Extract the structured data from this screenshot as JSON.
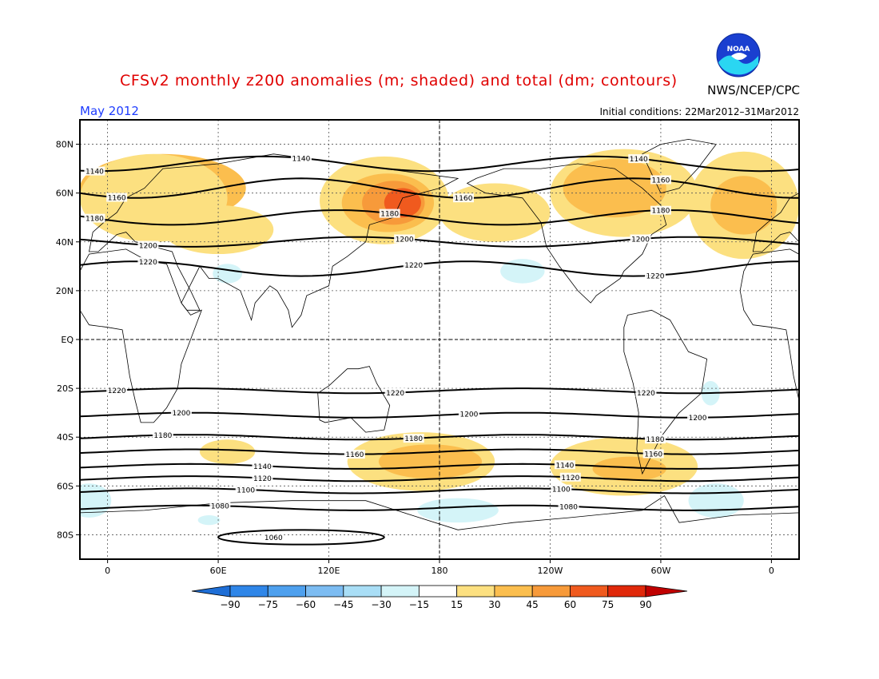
{
  "header": {
    "title": "CFSv2 monthly z200 anomalies (m; shaded) and total (dm; contours)",
    "month": "May 2012",
    "initial_conditions": "Initial conditions: 22Mar2012–31Mar2012",
    "agency": "NWS/NCEP/CPC",
    "logo_text": "NOAA"
  },
  "map": {
    "lat_labels": [
      "80N",
      "60N",
      "40N",
      "20N",
      "EQ",
      "20S",
      "40S",
      "60S",
      "80S"
    ],
    "lat_values": [
      80,
      60,
      40,
      20,
      0,
      -20,
      -40,
      -60,
      -80
    ],
    "lon_labels": [
      "0",
      "60E",
      "120E",
      "180",
      "120W",
      "60W",
      "0"
    ],
    "lon_values": [
      0,
      60,
      120,
      180,
      240,
      300,
      360
    ],
    "lon_range": [
      -15,
      375
    ],
    "lat_range": [
      -90,
      90
    ],
    "contours": [
      {
        "label": "1140",
        "lat": 72,
        "amp": 3,
        "phase": 40,
        "labels_at": [
          -7,
          105,
          288
        ]
      },
      {
        "label": "1160",
        "lat": 62,
        "amp": 4,
        "phase": 60,
        "labels_at": [
          5,
          193,
          300
        ]
      },
      {
        "label": "1180",
        "lat": 50,
        "amp": 3,
        "phase": 80,
        "labels_at": [
          -7,
          153,
          300
        ]
      },
      {
        "label": "1200",
        "lat": 40,
        "amp": 2,
        "phase": 90,
        "labels_at": [
          22,
          161,
          289
        ]
      },
      {
        "label": "1220",
        "lat": 29,
        "amp": 3,
        "phase": 150,
        "labels_at": [
          22,
          166,
          297
        ]
      },
      {
        "label": "1220",
        "lat": -21,
        "amp": 1,
        "phase": 0,
        "labels_at": [
          5,
          156,
          292
        ]
      },
      {
        "label": "1200",
        "lat": -31,
        "amp": 1,
        "phase": 0,
        "labels_at": [
          40,
          196,
          320
        ]
      },
      {
        "label": "1180",
        "lat": -40,
        "amp": 1,
        "phase": 0,
        "labels_at": [
          30,
          166,
          297
        ]
      },
      {
        "label": "1160",
        "lat": -46,
        "amp": 1,
        "phase": 0,
        "labels_at": [
          134,
          296
        ]
      },
      {
        "label": "1140",
        "lat": -52,
        "amp": 1,
        "phase": 0,
        "labels_at": [
          84,
          248
        ]
      },
      {
        "label": "1120",
        "lat": -57,
        "amp": 1,
        "phase": 0,
        "labels_at": [
          84,
          251
        ]
      },
      {
        "label": "1100",
        "lat": -62,
        "amp": 1,
        "phase": 0,
        "labels_at": [
          75,
          246
        ]
      },
      {
        "label": "1080",
        "lat": -69,
        "amp": 1,
        "phase": 0,
        "labels_at": [
          61,
          250
        ]
      },
      {
        "label": "1060",
        "lat": -81,
        "amp": 0,
        "phase": 0,
        "labels_at": [
          90
        ]
      }
    ],
    "anomalies": [
      {
        "lon": 30,
        "lat": 62,
        "rx": 45,
        "ry": 14,
        "value": 30
      },
      {
        "lon": 25,
        "lat": 58,
        "rx": 40,
        "ry": 18,
        "value": 15
      },
      {
        "lon": 60,
        "lat": 45,
        "rx": 30,
        "ry": 10,
        "value": 15
      },
      {
        "lon": 150,
        "lat": 57,
        "rx": 35,
        "ry": 18,
        "value": 15
      },
      {
        "lon": 152,
        "lat": 56,
        "rx": 25,
        "ry": 12,
        "value": 30
      },
      {
        "lon": 155,
        "lat": 56,
        "rx": 17,
        "ry": 9,
        "value": 45
      },
      {
        "lon": 160,
        "lat": 56,
        "rx": 10,
        "ry": 6,
        "value": 60
      },
      {
        "lon": 210,
        "lat": 52,
        "rx": 30,
        "ry": 12,
        "value": 15
      },
      {
        "lon": 280,
        "lat": 60,
        "rx": 40,
        "ry": 18,
        "value": 15
      },
      {
        "lon": 275,
        "lat": 62,
        "rx": 28,
        "ry": 12,
        "value": 30
      },
      {
        "lon": 345,
        "lat": 55,
        "rx": 30,
        "ry": 22,
        "value": 15
      },
      {
        "lon": 345,
        "lat": 55,
        "rx": 18,
        "ry": 12,
        "value": 30
      },
      {
        "lon": 225,
        "lat": 28,
        "rx": 12,
        "ry": 5,
        "value": -15
      },
      {
        "lon": 65,
        "lat": 27,
        "rx": 8,
        "ry": 4,
        "value": -15
      },
      {
        "lon": 327,
        "lat": -22,
        "rx": 5,
        "ry": 5,
        "value": -15
      },
      {
        "lon": 170,
        "lat": -50,
        "rx": 40,
        "ry": 12,
        "value": 15
      },
      {
        "lon": 175,
        "lat": -50,
        "rx": 28,
        "ry": 7,
        "value": 30
      },
      {
        "lon": 280,
        "lat": -52,
        "rx": 40,
        "ry": 12,
        "value": 15
      },
      {
        "lon": 283,
        "lat": -53,
        "rx": 20,
        "ry": 5,
        "value": 30
      },
      {
        "lon": 65,
        "lat": -46,
        "rx": 15,
        "ry": 5,
        "value": 15
      },
      {
        "lon": -10,
        "lat": -66,
        "rx": 12,
        "ry": 7,
        "value": -15
      },
      {
        "lon": 190,
        "lat": -70,
        "rx": 22,
        "ry": 5,
        "value": -15
      },
      {
        "lon": 330,
        "lat": -66,
        "rx": 15,
        "ry": 7,
        "value": -15
      },
      {
        "lon": 55,
        "lat": -74,
        "rx": 6,
        "ry": 2,
        "value": -15
      }
    ]
  },
  "colorbar": {
    "labels": [
      "−90",
      "−75",
      "−60",
      "−45",
      "−30",
      "−15",
      "15",
      "30",
      "45",
      "60",
      "75",
      "90"
    ],
    "colors": [
      "#1e6ed6",
      "#2f86e8",
      "#4ea0ee",
      "#7cbcf2",
      "#a9def6",
      "#d4f4f8",
      "#ffffff",
      "#fce080",
      "#fbbe4e",
      "#f79a3a",
      "#f05a1e",
      "#e0280a",
      "#c00000"
    ]
  }
}
